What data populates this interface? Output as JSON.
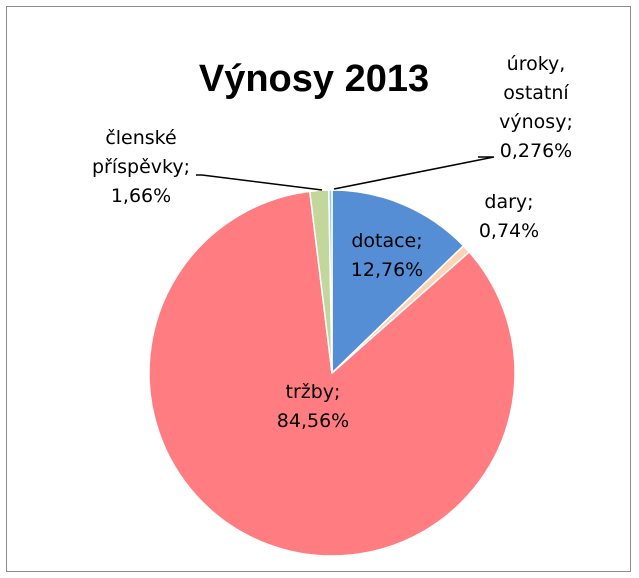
{
  "chart_data": {
    "type": "pie",
    "title": "Výnosy 2013",
    "slices": [
      {
        "name": "dotace",
        "value": 12.76,
        "label": [
          "dotace;",
          "12,76%"
        ],
        "color": "#558ed5"
      },
      {
        "name": "dary",
        "value": 0.74,
        "label": [
          "dary;",
          "0,74%"
        ],
        "color": "#fbd4b4"
      },
      {
        "name": "tržby",
        "value": 84.56,
        "label": [
          "tržby;",
          "84,56%"
        ],
        "color": "#ff7c80"
      },
      {
        "name": "členské příspěvky",
        "value": 1.66,
        "label": [
          "členské",
          "příspěvky;",
          "1,66%"
        ],
        "color": "#c3d69b"
      },
      {
        "name": "úroky, ostatní výnosy",
        "value": 0.276,
        "label": [
          "úroky,",
          "ostatní",
          "výnosy;",
          "0,276%"
        ],
        "color": "#93cddd"
      }
    ],
    "start_angle": "12 o'clock",
    "direction": "clockwise",
    "legend": "none",
    "label_mode": "category; percentage"
  }
}
